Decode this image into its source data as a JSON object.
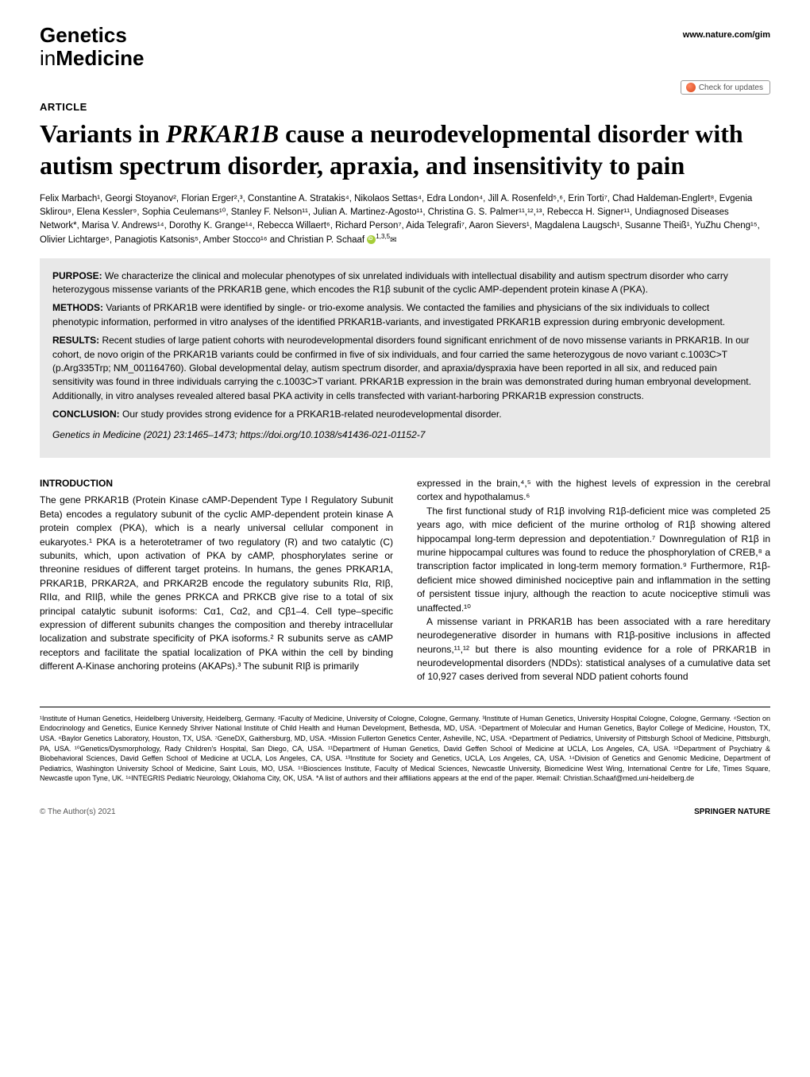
{
  "journal": {
    "line1": "Genetics",
    "line2_prefix": "in",
    "line2_bold": "Medicine"
  },
  "nature_link": "www.nature.com/gim",
  "updates_badge": "Check for updates",
  "article_label": "ARTICLE",
  "title": "Variants in PRKAR1B cause a neurodevelopmental disorder with autism spectrum disorder, apraxia, and insensitivity to pain",
  "authors_line": "Felix Marbach¹, Georgi Stoyanov², Florian Erger²,³, Constantine A. Stratakis⁴, Nikolaos Settas⁴, Edra London⁴, Jill A. Rosenfeld⁵,⁶, Erin Torti⁷, Chad Haldeman-Englert⁸, Evgenia Sklirou⁹, Elena Kessler⁹, Sophia Ceulemans¹⁰, Stanley F. Nelson¹¹, Julian A. Martinez-Agosto¹¹, Christina G. S. Palmer¹¹,¹²,¹³, Rebecca H. Signer¹¹, Undiagnosed Diseases Network*, Marisa V. Andrews¹⁴, Dorothy K. Grange¹⁴, Rebecca Willaert⁶, Richard Person⁷, Aida Telegrafi⁷, Aaron Sievers¹, Magdalena Laugsch¹, Susanne Theiß¹, YuZhu Cheng¹⁵, Olivier Lichtarge⁵, Panagiotis Katsonis⁵, Amber Stocco¹⁶ and Christian P. Schaaf",
  "last_author_sup": "1,3,5",
  "abstract": {
    "purpose_label": "PURPOSE:",
    "purpose": " We characterize the clinical and molecular phenotypes of six unrelated individuals with intellectual disability and autism spectrum disorder who carry heterozygous missense variants of the PRKAR1B gene, which encodes the R1β subunit of the cyclic AMP-dependent protein kinase A (PKA).",
    "methods_label": "METHODS:",
    "methods": " Variants of PRKAR1B were identified by single- or trio-exome analysis. We contacted the families and physicians of the six individuals to collect phenotypic information, performed in vitro analyses of the identified PRKAR1B-variants, and investigated PRKAR1B expression during embryonic development.",
    "results_label": "RESULTS:",
    "results": " Recent studies of large patient cohorts with neurodevelopmental disorders found significant enrichment of de novo missense variants in PRKAR1B. In our cohort, de novo origin of the PRKAR1B variants could be confirmed in five of six individuals, and four carried the same heterozygous de novo variant c.1003C>T (p.Arg335Trp; NM_001164760). Global developmental delay, autism spectrum disorder, and apraxia/dyspraxia have been reported in all six, and reduced pain sensitivity was found in three individuals carrying the c.1003C>T variant. PRKAR1B expression in the brain was demonstrated during human embryonal development. Additionally, in vitro analyses revealed altered basal PKA activity in cells transfected with variant-harboring PRKAR1B expression constructs.",
    "conclusion_label": "CONCLUSION:",
    "conclusion": " Our study provides strong evidence for a PRKAR1B-related neurodevelopmental disorder.",
    "citation": "Genetics in Medicine (2021) 23:1465–1473; https://doi.org/10.1038/s41436-021-01152-7"
  },
  "intro_head": "INTRODUCTION",
  "intro_col1": "The gene PRKAR1B (Protein Kinase cAMP-Dependent Type I Regulatory Subunit Beta) encodes a regulatory subunit of the cyclic AMP-dependent protein kinase A protein complex (PKA), which is a nearly universal cellular component in eukaryotes.¹ PKA is a heterotetramer of two regulatory (R) and two catalytic (C) subunits, which, upon activation of PKA by cAMP, phosphorylates serine or threonine residues of different target proteins. In humans, the genes PRKAR1A, PRKAR1B, PRKAR2A, and PRKAR2B encode the regulatory subunits RIα, RIβ, RIIα, and RIIβ, while the genes PRKCA and PRKCB give rise to a total of six principal catalytic subunit isoforms: Cα1, Cα2, and Cβ1–4. Cell type–specific expression of different subunits changes the composition and thereby intracellular localization and substrate specificity of PKA isoforms.² R subunits serve as cAMP receptors and facilitate the spatial localization of PKA within the cell by binding different A-Kinase anchoring proteins (AKAPs).³ The subunit RIβ is primarily",
  "intro_col2_p1": "expressed in the brain,⁴,⁵ with the highest levels of expression in the cerebral cortex and hypothalamus.⁶",
  "intro_col2_p2": "The first functional study of R1β involving R1β-deficient mice was completed 25 years ago, with mice deficient of the murine ortholog of R1β showing altered hippocampal long-term depression and depotentiation.⁷ Downregulation of R1β in murine hippocampal cultures was found to reduce the phosphorylation of CREB,⁸ a transcription factor implicated in long-term memory formation.⁹ Furthermore, R1β-deficient mice showed diminished nociceptive pain and inflammation in the setting of persistent tissue injury, although the reaction to acute nociceptive stimuli was unaffected.¹⁰",
  "intro_col2_p3": "A missense variant in PRKAR1B has been associated with a rare hereditary neurodegenerative disorder in humans with R1β-positive inclusions in affected neurons,¹¹,¹² but there is also mounting evidence for a role of PRKAR1B in neurodevelopmental disorders (NDDs): statistical analyses of a cumulative data set of 10,927 cases derived from several NDD patient cohorts found",
  "affiliations": "¹Institute of Human Genetics, Heidelberg University, Heidelberg, Germany. ²Faculty of Medicine, University of Cologne, Cologne, Germany. ³Institute of Human Genetics, University Hospital Cologne, Cologne, Germany. ⁴Section on Endocrinology and Genetics, Eunice Kennedy Shriver National Institute of Child Health and Human Development, Bethesda, MD, USA. ⁵Department of Molecular and Human Genetics, Baylor College of Medicine, Houston, TX, USA. ⁶Baylor Genetics Laboratory, Houston, TX, USA. ⁷GeneDX, Gaithersburg, MD, USA. ⁸Mission Fullerton Genetics Center, Asheville, NC, USA. ⁹Department of Pediatrics, University of Pittsburgh School of Medicine, Pittsburgh, PA, USA. ¹⁰Genetics/Dysmorphology, Rady Children's Hospital, San Diego, CA, USA. ¹¹Department of Human Genetics, David Geffen School of Medicine at UCLA, Los Angeles, CA, USA. ¹²Department of Psychiatry & Biobehavioral Sciences, David Geffen School of Medicine at UCLA, Los Angeles, CA, USA. ¹³Institute for Society and Genetics, UCLA, Los Angeles, CA, USA. ¹⁴Division of Genetics and Genomic Medicine, Department of Pediatrics, Washington University School of Medicine, Saint Louis, MO, USA. ¹⁵Biosciences Institute, Faculty of Medical Sciences, Newcastle University, Biomedicine West Wing, International Centre for Life, Times Square, Newcastle upon Tyne, UK. ¹⁶INTEGRIS Pediatric Neurology, Oklahoma City, OK, USA. *A list of authors and their affiliations appears at the end of the paper. ✉email: Christian.Schaaf@med.uni-heidelberg.de",
  "footer": {
    "left": "© The Author(s) 2021",
    "right": "SPRINGER NATURE"
  }
}
